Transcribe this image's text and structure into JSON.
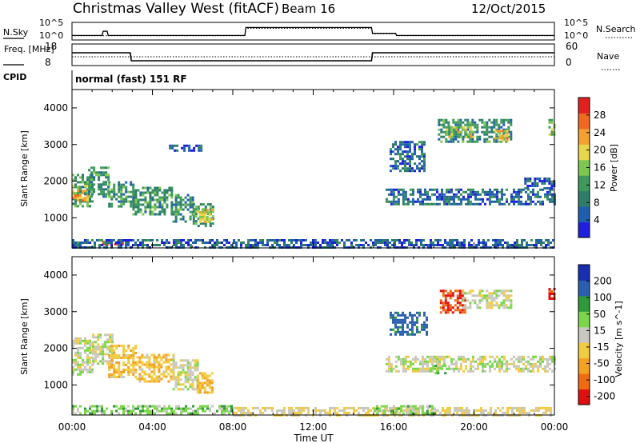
{
  "header": {
    "title": "Christmas Valley West (fitACF)",
    "beam": "Beam 16",
    "date": "12/Oct/2015"
  },
  "colors": {
    "background": "#ffffff",
    "axis": "#000000",
    "power_scale": [
      "#1f1fe0",
      "#1f5fb0",
      "#2e7d6b",
      "#3e9a5a",
      "#7ec850",
      "#e7d64a",
      "#f4a030",
      "#ef6a20",
      "#e22020"
    ],
    "velocity_scale": [
      "#e01010",
      "#f06a10",
      "#f4a020",
      "#f2cc40",
      "#c8c8c0",
      "#7cd64a",
      "#2f9a3a",
      "#2a5fb0",
      "#1a2fb0"
    ]
  },
  "chart_data": [
    {
      "type": "line",
      "name": "sky-noise-panel",
      "ylabel_left": "N.Sky",
      "ylabel_right": "N.Search",
      "yticks_left": [
        "10^5",
        "10^0"
      ],
      "yticks_right": [
        "10^5",
        "10^0"
      ],
      "x_hours": [
        0,
        1.5,
        1.55,
        1.75,
        1.8,
        8.6,
        8.65,
        14.9,
        14.95,
        16.1,
        16.15,
        24
      ],
      "sky_values": [
        10,
        10,
        300,
        300,
        10,
        10,
        6000,
        6000,
        60,
        60,
        10,
        10
      ],
      "search_values": [
        8,
        8,
        8,
        8,
        8,
        8,
        3000,
        3000,
        40,
        40,
        8,
        8
      ]
    },
    {
      "type": "line",
      "name": "frequency-nave-panel",
      "ylabel_left": "Freq. [MHz]",
      "ylabel_right": "Nave",
      "yticks_left": [
        "18",
        "8"
      ],
      "yticks_right": [
        "60",
        "0"
      ],
      "freq_x_hours": [
        0,
        2.9,
        2.95,
        14.9,
        14.95,
        24
      ],
      "freq_mhz": [
        14.5,
        14.5,
        9.5,
        9.5,
        14.5,
        14.5
      ],
      "nave_x_hours": [
        0,
        24
      ],
      "nave_values": [
        24,
        24
      ]
    },
    {
      "type": "text",
      "name": "cpid-panel",
      "ylabel": "CPID",
      "value": "normal (fast) 151 RF"
    },
    {
      "type": "heatmap",
      "name": "power-panel",
      "ylabel": "Slant Range [km]",
      "ylim": [
        180,
        4500
      ],
      "yticks": [
        1000,
        2000,
        3000,
        4000
      ],
      "colorbar_label": "Power [dB]",
      "colorbar_ticks": [
        4,
        8,
        12,
        16,
        20,
        24,
        28
      ],
      "colorbar_range": [
        0,
        32
      ],
      "regions": [
        {
          "x0": 0.0,
          "x1": 1.0,
          "r0": 1300,
          "r1": 2200,
          "level": 12
        },
        {
          "x0": 0.0,
          "x1": 0.8,
          "r0": 1500,
          "r1": 1900,
          "level": 22
        },
        {
          "x0": 0.8,
          "x1": 1.8,
          "r0": 1600,
          "r1": 2400,
          "level": 11
        },
        {
          "x0": 1.8,
          "x1": 3.0,
          "r0": 1300,
          "r1": 2000,
          "level": 11
        },
        {
          "x0": 3.0,
          "x1": 5.0,
          "r0": 1100,
          "r1": 1850,
          "level": 11
        },
        {
          "x0": 5.0,
          "x1": 6.0,
          "r0": 900,
          "r1": 1650,
          "level": 10
        },
        {
          "x0": 6.0,
          "x1": 7.0,
          "r0": 800,
          "r1": 1400,
          "level": 12
        },
        {
          "x0": 6.2,
          "x1": 7.0,
          "r0": 900,
          "r1": 1250,
          "level": 20
        },
        {
          "x0": 1.5,
          "x1": 2.5,
          "r0": 250,
          "r1": 380,
          "level": 30
        },
        {
          "x0": 0.0,
          "x1": 24.0,
          "r0": 180,
          "r1": 420,
          "level": 6
        },
        {
          "x0": 4.7,
          "x1": 6.4,
          "r0": 2850,
          "r1": 3000,
          "level": 5
        },
        {
          "x0": 15.8,
          "x1": 17.5,
          "r0": 2300,
          "r1": 3100,
          "level": 7
        },
        {
          "x0": 18.2,
          "x1": 21.8,
          "r0": 3100,
          "r1": 3700,
          "level": 10
        },
        {
          "x0": 18.6,
          "x1": 20.0,
          "r0": 3200,
          "r1": 3500,
          "level": 18
        },
        {
          "x0": 21.0,
          "x1": 21.6,
          "r0": 3100,
          "r1": 3400,
          "level": 20
        },
        {
          "x0": 15.6,
          "x1": 24.0,
          "r0": 1400,
          "r1": 1800,
          "level": 7
        },
        {
          "x0": 22.5,
          "x1": 24.0,
          "r0": 1800,
          "r1": 2100,
          "level": 6
        },
        {
          "x0": 23.7,
          "x1": 24.0,
          "r0": 3300,
          "r1": 3700,
          "level": 14
        }
      ]
    },
    {
      "type": "heatmap",
      "name": "velocity-panel",
      "ylabel": "Slant Range [km]",
      "ylim": [
        180,
        4500
      ],
      "yticks": [
        1000,
        2000,
        3000,
        4000
      ],
      "colorbar_label": "Velocity [m s^-1]",
      "colorbar_ticks": [
        -200,
        -100,
        -50,
        -15,
        15,
        50,
        100,
        200
      ],
      "regions": [
        {
          "x0": 0.0,
          "x1": 1.0,
          "r0": 1300,
          "r1": 2300,
          "vel": 0
        },
        {
          "x0": 1.0,
          "x1": 2.0,
          "r0": 1600,
          "r1": 2400,
          "vel": 0
        },
        {
          "x0": 1.8,
          "x1": 3.2,
          "r0": 1200,
          "r1": 2100,
          "vel": -40
        },
        {
          "x0": 3.2,
          "x1": 5.0,
          "r0": 1100,
          "r1": 1850,
          "vel": -40
        },
        {
          "x0": 5.0,
          "x1": 6.2,
          "r0": 900,
          "r1": 1700,
          "vel": 0
        },
        {
          "x0": 6.2,
          "x1": 7.0,
          "r0": 800,
          "r1": 1350,
          "vel": -50
        },
        {
          "x0": 0.0,
          "x1": 8.0,
          "r0": 250,
          "r1": 450,
          "vel": 30
        },
        {
          "x0": 8.0,
          "x1": 24.0,
          "r0": 180,
          "r1": 400,
          "vel": -15
        },
        {
          "x0": 15.0,
          "x1": 18.0,
          "r0": 250,
          "r1": 450,
          "vel": 30
        },
        {
          "x0": 15.8,
          "x1": 17.6,
          "r0": 2400,
          "r1": 3000,
          "vel": 120
        },
        {
          "x0": 18.3,
          "x1": 19.6,
          "r0": 3000,
          "r1": 3600,
          "vel": -200
        },
        {
          "x0": 19.4,
          "x1": 21.8,
          "r0": 3100,
          "r1": 3600,
          "vel": 0
        },
        {
          "x0": 15.6,
          "x1": 24.0,
          "r0": 1400,
          "r1": 1800,
          "vel": 0
        },
        {
          "x0": 17.8,
          "x1": 18.6,
          "r0": 1350,
          "r1": 1550,
          "vel": 40
        },
        {
          "x0": 23.7,
          "x1": 24.0,
          "r0": 3350,
          "r1": 3650,
          "vel": -200
        }
      ]
    }
  ],
  "x_axis": {
    "label": "Time UT",
    "range_hours": [
      0,
      24
    ],
    "tick_hours": [
      0,
      4,
      8,
      12,
      16,
      20,
      24
    ],
    "tick_labels": [
      "00:00",
      "04:00",
      "08:00",
      "12:00",
      "16:00",
      "20:00",
      "00:00"
    ]
  }
}
